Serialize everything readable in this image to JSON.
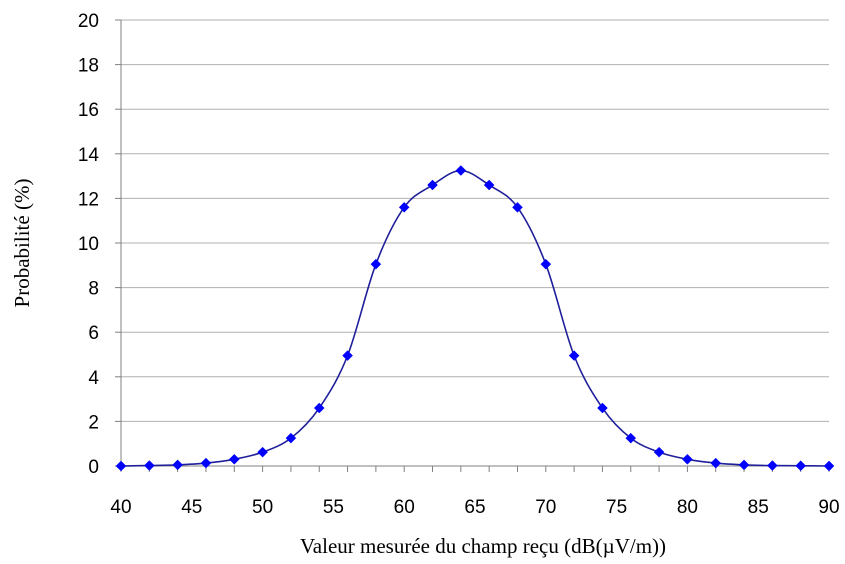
{
  "chart_data": {
    "type": "line",
    "title": "",
    "xlabel": "Valeur mesurée du champ reçu (dB(µV/m))",
    "ylabel": "Probabilité (%)",
    "xlim": [
      40,
      90
    ],
    "ylim": [
      0,
      20
    ],
    "xticks": [
      40,
      45,
      50,
      55,
      60,
      65,
      70,
      75,
      80,
      85,
      90
    ],
    "yticks": [
      0,
      2,
      4,
      6,
      8,
      10,
      12,
      14,
      16,
      18,
      20
    ],
    "grid": "horizontal",
    "legend": "none",
    "series": [
      {
        "x": [
          40,
          42,
          44,
          46,
          48,
          50,
          52,
          54,
          56,
          58,
          60,
          62,
          64,
          66,
          68,
          70,
          72,
          74,
          76,
          78,
          80,
          82,
          84,
          86,
          88,
          90
        ],
        "y": [
          0.0,
          0.02,
          0.05,
          0.13,
          0.3,
          0.62,
          1.25,
          2.6,
          4.95,
          9.05,
          11.6,
          12.6,
          13.25,
          12.6,
          11.6,
          9.05,
          4.95,
          2.6,
          1.25,
          0.62,
          0.3,
          0.13,
          0.05,
          0.02,
          0.01,
          0.0
        ],
        "color": "#1f1f9a",
        "marker_color": "#0000ff",
        "marker": "diamond"
      }
    ]
  }
}
